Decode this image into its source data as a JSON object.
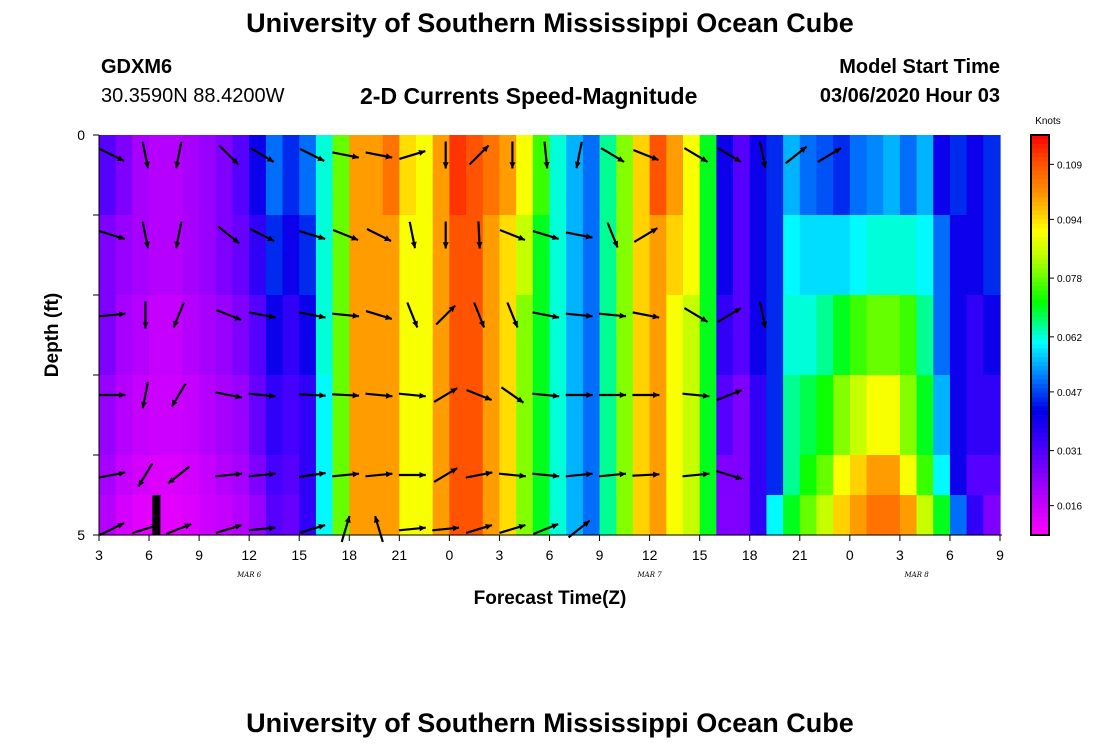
{
  "header": {
    "title": "University of Southern Mississippi Ocean Cube",
    "station": "GDXM6",
    "coordinates": "30.3590N 88.4200W",
    "subtitle": "2-D Currents Speed-Magnitude",
    "model_start_label": "Model Start Time",
    "model_start_value": "03/06/2020 Hour 03"
  },
  "footer": {
    "title": "University of Southern Mississippi Ocean Cube"
  },
  "chart_data": {
    "type": "heatmap",
    "title": "2-D Currents Speed-Magnitude",
    "xlabel": "Forecast Time(Z)",
    "ylabel": "Depth (ft)",
    "x_hours": [
      0,
      3,
      6,
      9,
      12,
      15,
      18,
      21,
      24,
      27,
      30,
      33,
      36,
      39,
      42,
      45,
      48,
      51,
      54
    ],
    "x_tick_labels": [
      "3",
      "6",
      "9",
      "12",
      "15",
      "18",
      "21",
      "0",
      "3",
      "6",
      "9",
      "12",
      "15",
      "18",
      "21",
      "0",
      "3",
      "6",
      "9"
    ],
    "date_labels": [
      {
        "label": "MAR 6",
        "hour": 9
      },
      {
        "label": "MAR 7",
        "hour": 33
      },
      {
        "label": "MAR 8",
        "hour": 49
      }
    ],
    "y_tick_labels": [
      {
        "label": "0",
        "depth": 0
      },
      {
        "label": "5",
        "depth": 5
      }
    ],
    "ylim": [
      5,
      0
    ],
    "colorbar": {
      "unit": "Knots",
      "min": 0.008,
      "max": 0.117,
      "tick_values": [
        0.016,
        0.031,
        0.047,
        0.062,
        0.078,
        0.094,
        0.109
      ],
      "tick_labels": [
        "0.016",
        "0.031",
        "0.047",
        "0.062",
        "0.078",
        "0.094",
        "0.109"
      ]
    },
    "column_hours": [
      0,
      1,
      2,
      3,
      4,
      5,
      6,
      7,
      8,
      9,
      10,
      11,
      12,
      13,
      14,
      15,
      16,
      17,
      18,
      19,
      20,
      21,
      22,
      23,
      24,
      25,
      26,
      27,
      28,
      29,
      30,
      31,
      32,
      33,
      34,
      35,
      36,
      37,
      38,
      39,
      40,
      41,
      42,
      43,
      44,
      45,
      46,
      47,
      48,
      49,
      50,
      51,
      52,
      53
    ],
    "depth_layers": [
      0.25,
      1.25,
      2.25,
      3.25,
      4.25,
      4.75
    ],
    "speed_knots": [
      [
        0.03,
        0.025,
        0.02,
        0.018,
        0.018,
        0.02,
        0.022,
        0.025,
        0.03,
        0.04,
        0.05,
        0.045,
        0.05,
        0.062,
        0.078,
        0.1,
        0.1,
        0.105,
        0.094,
        0.09,
        0.1,
        0.112,
        0.109,
        0.105,
        0.1,
        0.09,
        0.075,
        0.062,
        0.055,
        0.05,
        0.065,
        0.08,
        0.095,
        0.109,
        0.1,
        0.09,
        0.07,
        0.04,
        0.03,
        0.04,
        0.045,
        0.055,
        0.05,
        0.048,
        0.045,
        0.05,
        0.052,
        0.055,
        0.05,
        0.055,
        0.04,
        0.045,
        0.04,
        0.045
      ],
      [
        0.025,
        0.022,
        0.02,
        0.018,
        0.018,
        0.02,
        0.022,
        0.025,
        0.028,
        0.035,
        0.045,
        0.04,
        0.045,
        0.062,
        0.078,
        0.1,
        0.1,
        0.1,
        0.09,
        0.09,
        0.1,
        0.109,
        0.109,
        0.1,
        0.094,
        0.085,
        0.07,
        0.062,
        0.055,
        0.05,
        0.065,
        0.08,
        0.095,
        0.1,
        0.095,
        0.09,
        0.07,
        0.04,
        0.03,
        0.04,
        0.045,
        0.06,
        0.058,
        0.058,
        0.058,
        0.06,
        0.062,
        0.062,
        0.062,
        0.06,
        0.05,
        0.04,
        0.04,
        0.045
      ],
      [
        0.025,
        0.02,
        0.018,
        0.016,
        0.016,
        0.018,
        0.02,
        0.022,
        0.025,
        0.03,
        0.04,
        0.035,
        0.04,
        0.062,
        0.078,
        0.1,
        0.1,
        0.1,
        0.09,
        0.09,
        0.1,
        0.109,
        0.109,
        0.1,
        0.094,
        0.08,
        0.07,
        0.062,
        0.055,
        0.05,
        0.065,
        0.08,
        0.095,
        0.1,
        0.09,
        0.085,
        0.07,
        0.035,
        0.03,
        0.04,
        0.045,
        0.062,
        0.062,
        0.065,
        0.07,
        0.075,
        0.078,
        0.078,
        0.075,
        0.065,
        0.05,
        0.04,
        0.035,
        0.04
      ],
      [
        0.022,
        0.018,
        0.016,
        0.015,
        0.015,
        0.016,
        0.018,
        0.02,
        0.022,
        0.028,
        0.035,
        0.032,
        0.035,
        0.06,
        0.078,
        0.1,
        0.1,
        0.1,
        0.09,
        0.09,
        0.1,
        0.109,
        0.109,
        0.1,
        0.094,
        0.08,
        0.07,
        0.062,
        0.055,
        0.05,
        0.065,
        0.08,
        0.095,
        0.1,
        0.09,
        0.085,
        0.07,
        0.03,
        0.025,
        0.035,
        0.045,
        0.065,
        0.068,
        0.072,
        0.08,
        0.085,
        0.09,
        0.09,
        0.08,
        0.07,
        0.055,
        0.04,
        0.035,
        0.035
      ],
      [
        0.02,
        0.016,
        0.014,
        0.013,
        0.013,
        0.014,
        0.016,
        0.018,
        0.02,
        0.025,
        0.032,
        0.03,
        0.035,
        0.06,
        0.078,
        0.1,
        0.1,
        0.1,
        0.09,
        0.09,
        0.1,
        0.109,
        0.109,
        0.1,
        0.094,
        0.08,
        0.07,
        0.062,
        0.055,
        0.05,
        0.065,
        0.08,
        0.095,
        0.1,
        0.09,
        0.085,
        0.07,
        0.025,
        0.025,
        0.035,
        0.045,
        0.065,
        0.072,
        0.078,
        0.09,
        0.095,
        0.1,
        0.1,
        0.09,
        0.075,
        0.06,
        0.04,
        0.03,
        0.03
      ],
      [
        0.018,
        0.014,
        0.012,
        0.012,
        0.012,
        0.013,
        0.015,
        0.016,
        0.018,
        0.022,
        0.03,
        0.028,
        0.035,
        0.06,
        0.078,
        0.1,
        0.1,
        0.1,
        0.09,
        0.09,
        0.1,
        0.109,
        0.109,
        0.1,
        0.094,
        0.08,
        0.07,
        0.062,
        0.055,
        0.05,
        0.065,
        0.08,
        0.095,
        0.1,
        0.09,
        0.085,
        0.07,
        0.025,
        0.025,
        0.035,
        0.06,
        0.07,
        0.078,
        0.085,
        0.095,
        0.1,
        0.105,
        0.105,
        0.1,
        0.085,
        0.07,
        0.05,
        0.035,
        0.025
      ]
    ],
    "vector_hours": [
      0,
      2,
      4,
      7,
      9,
      12,
      14,
      16,
      18,
      20,
      22,
      24,
      26,
      28,
      30,
      32,
      35,
      37,
      39,
      41,
      43,
      45,
      47,
      49
    ],
    "vector_depths": [
      0.25,
      1.25,
      2.25,
      3.25,
      4.25,
      5.0
    ],
    "vectors": [
      [
        [
          1,
          -0.5
        ],
        [
          0.2,
          -1
        ],
        [
          -0.2,
          -1
        ],
        [
          1,
          -1
        ],
        [
          1,
          -0.6
        ],
        [
          1,
          -0.5
        ],
        [
          1,
          -0.2
        ],
        [
          1,
          -0.2
        ],
        [
          1,
          0.3
        ],
        [
          0,
          -1
        ],
        [
          1,
          1
        ],
        [
          0,
          -1
        ],
        [
          0.1,
          -1
        ],
        [
          -0.2,
          -1
        ],
        [
          1,
          -0.6
        ],
        [
          1,
          -0.4
        ],
        [
          1,
          -0.6
        ],
        [
          1,
          -0.6
        ],
        [
          0.2,
          -1
        ],
        [
          1,
          0.8
        ],
        [
          1,
          0.6
        ]
      ],
      [
        [
          1,
          -0.3
        ],
        [
          0.2,
          -1
        ],
        [
          -0.2,
          -1
        ],
        [
          1,
          -0.8
        ],
        [
          1,
          -0.5
        ],
        [
          1,
          -0.3
        ],
        [
          1,
          -0.4
        ],
        [
          1,
          -0.5
        ],
        [
          0.2,
          -1
        ],
        [
          0,
          -1
        ],
        [
          0.05,
          -1
        ],
        [
          1,
          -0.4
        ],
        [
          1,
          -0.3
        ],
        [
          1,
          -0.2
        ],
        [
          0.4,
          -1
        ],
        [
          1,
          0.6
        ]
      ],
      [
        [
          1,
          0.1
        ],
        [
          0,
          -1
        ],
        [
          -0.4,
          -1
        ],
        [
          1,
          -0.4
        ],
        [
          1,
          -0.2
        ],
        [
          1,
          -0.2
        ],
        [
          1,
          -0.1
        ],
        [
          1,
          -0.3
        ],
        [
          0.4,
          -1
        ],
        [
          1,
          1
        ],
        [
          0.4,
          -1
        ],
        [
          0.4,
          -1
        ],
        [
          1,
          -0.2
        ],
        [
          1,
          -0.1
        ],
        [
          1,
          -0.1
        ],
        [
          1,
          -0.2
        ],
        [
          1,
          -0.6
        ],
        [
          1,
          0.6
        ],
        [
          0.2,
          -1
        ]
      ],
      [
        [
          1,
          0
        ],
        [
          -0.2,
          -1
        ],
        [
          -0.6,
          -1
        ],
        [
          1,
          -0.2
        ],
        [
          1,
          -0.1
        ],
        [
          1,
          -0.05
        ],
        [
          1,
          -0.05
        ],
        [
          1,
          -0.1
        ],
        [
          1,
          -0.1
        ],
        [
          1,
          0.6
        ],
        [
          1,
          -0.4
        ],
        [
          1,
          -0.7
        ],
        [
          1,
          -0.1
        ],
        [
          1,
          0
        ],
        [
          1,
          0
        ],
        [
          1,
          0
        ],
        [
          1,
          -0.1
        ],
        [
          1,
          0.4
        ]
      ],
      [
        [
          1,
          0.2
        ],
        [
          -0.6,
          -1
        ],
        [
          -1,
          -0.8
        ],
        [
          1,
          0.1
        ],
        [
          1,
          0.1
        ],
        [
          1,
          0.15
        ],
        [
          1,
          0.1
        ],
        [
          1,
          0.1
        ],
        [
          1,
          0
        ],
        [
          1,
          0.6
        ],
        [
          1,
          0.2
        ],
        [
          1,
          -0.1
        ],
        [
          1,
          -0.1
        ],
        [
          1,
          0.1
        ],
        [
          1,
          0.1
        ],
        [
          1,
          0.05
        ],
        [
          1,
          0.1
        ],
        [
          1,
          -0.3
        ]
      ],
      [
        [
          1,
          0.5
        ],
        [
          1,
          0.3
        ],
        [
          1,
          0.4
        ],
        [
          1,
          0.3
        ],
        [
          1,
          0.1
        ],
        [
          1,
          0.3
        ],
        [
          0.3,
          1
        ],
        [
          -0.3,
          1
        ],
        [
          1,
          0.1
        ],
        [
          1,
          0.1
        ],
        [
          1,
          0.3
        ],
        [
          1,
          0.3
        ],
        [
          1,
          0.4
        ],
        [
          1,
          0.8
        ]
      ]
    ]
  }
}
